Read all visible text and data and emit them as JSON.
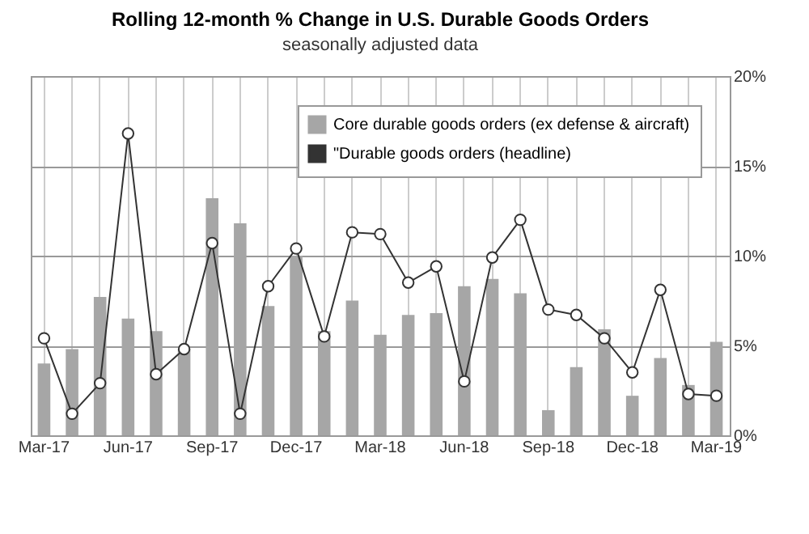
{
  "chart_data": {
    "type": "bar",
    "title": "Rolling 12-month % Change in U.S. Durable Goods Orders",
    "subtitle": "seasonally adjusted data",
    "categories": [
      "Mar-17",
      null,
      null,
      "Jun-17",
      null,
      null,
      "Sep-17",
      null,
      null,
      "Dec-17",
      null,
      null,
      "Mar-18",
      null,
      null,
      "Jun-18",
      null,
      null,
      "Sep-18",
      null,
      null,
      "Dec-18",
      null,
      null,
      "Mar-19"
    ],
    "series": [
      {
        "name": "Core durable goods orders (ex defense & aircraft)",
        "color": "#a6a6a6",
        "values": [
          4.0,
          4.8,
          7.7,
          6.5,
          5.8,
          4.8,
          13.2,
          11.8,
          7.2,
          10.0,
          5.8,
          7.5,
          5.6,
          6.7,
          6.8,
          8.3,
          8.7,
          7.9,
          1.4,
          3.8,
          5.9,
          2.2,
          4.3,
          2.8,
          5.2
        ]
      },
      {
        "name": "\"Durable goods orders (headline)",
        "type": "line",
        "color": "#333333",
        "marker": "circle",
        "values": [
          5.4,
          1.2,
          2.9,
          16.8,
          3.4,
          4.8,
          10.7,
          1.2,
          8.3,
          10.4,
          5.5,
          11.3,
          11.2,
          8.5,
          9.4,
          3.0,
          9.9,
          12.0,
          7.0,
          6.7,
          5.4,
          3.5,
          8.1,
          2.3,
          2.2
        ]
      }
    ],
    "ylim": [
      0,
      20
    ],
    "yticks": [
      {
        "value": 0,
        "label": "0%"
      },
      {
        "value": 5,
        "label": "5%"
      },
      {
        "value": 10,
        "label": "10%"
      },
      {
        "value": 15,
        "label": "15%"
      },
      {
        "value": 20,
        "label": "20%"
      }
    ],
    "grid": true,
    "legend": "top right"
  }
}
